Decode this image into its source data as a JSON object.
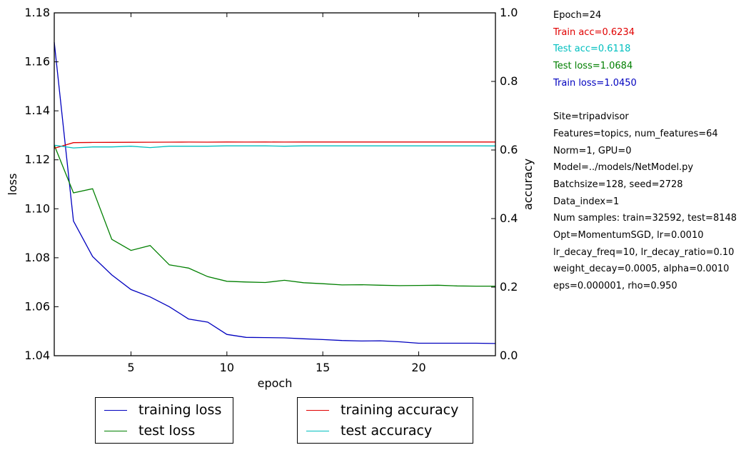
{
  "info": {
    "epoch": "Epoch=24",
    "train_acc": "Train acc=0.6234",
    "test_acc": "Test acc=0.6118",
    "test_loss": "Test loss=1.0684",
    "train_loss": "Train loss=1.0450",
    "site": "Site=tripadvisor",
    "features": "Features=topics, num_features=64",
    "norm": "Norm=1, GPU=0",
    "model": "Model=../models/NetModel.py",
    "batch": "Batchsize=128, seed=2728",
    "data_index": "Data_index=1",
    "samples": "Num samples: train=32592, test=8148",
    "opt": "Opt=MomentumSGD, lr=0.0010",
    "lr_decay": "lr_decay_freq=10, lr_decay_ratio=0.10",
    "weight_decay": "weight_decay=0.0005, alpha=0.0010",
    "eps": "eps=0.000001, rho=0.950"
  },
  "colors": {
    "train_loss": "#0000bf",
    "test_loss": "#007f00",
    "train_acc": "#e00000",
    "test_acc": "#00bfbf"
  },
  "chart_data": {
    "type": "line",
    "xlabel": "epoch",
    "ylabel_left": "loss",
    "ylabel_right": "accuracy",
    "xlim": [
      1,
      24
    ],
    "ylim_left": [
      1.04,
      1.18
    ],
    "ylim_right": [
      0.0,
      1.0
    ],
    "x_ticks": [
      5,
      10,
      15,
      20
    ],
    "y_ticks_left": [
      "1.04",
      "1.06",
      "1.08",
      "1.10",
      "1.12",
      "1.14",
      "1.16",
      "1.18"
    ],
    "y_ticks_right": [
      "0.0",
      "0.2",
      "0.4",
      "0.6",
      "0.8",
      "1.0"
    ],
    "x": [
      1,
      2,
      3,
      4,
      5,
      6,
      7,
      8,
      9,
      10,
      11,
      12,
      13,
      14,
      15,
      16,
      17,
      18,
      19,
      20,
      21,
      22,
      23,
      24
    ],
    "series": [
      {
        "name": "training loss",
        "axis": "left",
        "color_key": "train_loss",
        "values": [
          1.168,
          1.095,
          1.0805,
          1.073,
          1.067,
          1.064,
          1.06,
          1.055,
          1.0537,
          1.0487,
          1.0475,
          1.0474,
          1.0473,
          1.0469,
          1.0466,
          1.0462,
          1.046,
          1.0461,
          1.0457,
          1.0451,
          1.0451,
          1.0451,
          1.0451,
          1.045
        ]
      },
      {
        "name": "test loss",
        "axis": "left",
        "color_key": "test_loss",
        "values": [
          1.126,
          1.1065,
          1.1082,
          1.0875,
          1.083,
          1.085,
          1.0771,
          1.0758,
          1.0723,
          1.0704,
          1.0701,
          1.0699,
          1.0708,
          1.0698,
          1.0694,
          1.0689,
          1.069,
          1.0688,
          1.0686,
          1.0687,
          1.0688,
          1.0685,
          1.0684,
          1.0684
        ]
      },
      {
        "name": "training accuracy",
        "axis": "right",
        "color_key": "train_acc",
        "values": [
          0.605,
          0.6215,
          0.622,
          0.6222,
          0.6225,
          0.6228,
          0.623,
          0.6232,
          0.623,
          0.6233,
          0.6232,
          0.6233,
          0.6232,
          0.6234,
          0.6233,
          0.6234,
          0.6234,
          0.6234,
          0.6233,
          0.6234,
          0.6234,
          0.6234,
          0.6234,
          0.6234
        ]
      },
      {
        "name": "test accuracy",
        "axis": "right",
        "color_key": "test_acc",
        "values": [
          0.614,
          0.606,
          0.609,
          0.609,
          0.611,
          0.607,
          0.611,
          0.611,
          0.611,
          0.612,
          0.612,
          0.612,
          0.611,
          0.612,
          0.612,
          0.612,
          0.612,
          0.612,
          0.612,
          0.612,
          0.612,
          0.612,
          0.612,
          0.6118
        ]
      }
    ],
    "legend": {
      "left_box": [
        "training loss",
        "test loss"
      ],
      "right_box": [
        "training accuracy",
        "test accuracy"
      ],
      "placement": "below-plot"
    }
  }
}
